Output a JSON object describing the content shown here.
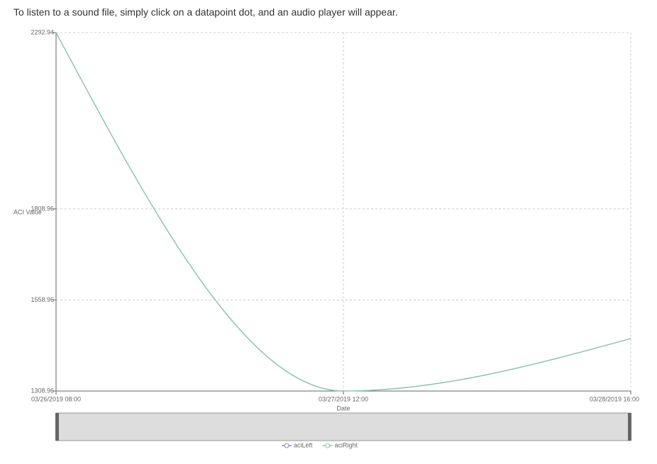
{
  "instructions": "To listen to a sound file, simply click on a datapoint dot, and an audio player will appear.",
  "chart_data": {
    "type": "line",
    "x_label": "Date",
    "y_label": "ACI Value",
    "categories": [
      "03/26/2019 08:00",
      "03/27/2019 12:00",
      "03/28/2019 16:00"
    ],
    "series": [
      {
        "name": "aciLeft",
        "color": "#8884d8",
        "values": [
          2292.94,
          1308.96,
          1453
        ]
      },
      {
        "name": "aciRight",
        "color": "#82ca9d",
        "values": [
          2292.94,
          1308.96,
          1453
        ]
      }
    ],
    "ylim": [
      1308.96,
      2292.94
    ],
    "yticks": [
      1308.96,
      1558.96,
      1808.96,
      2292.94
    ],
    "grid": true,
    "legend": "bottom"
  }
}
